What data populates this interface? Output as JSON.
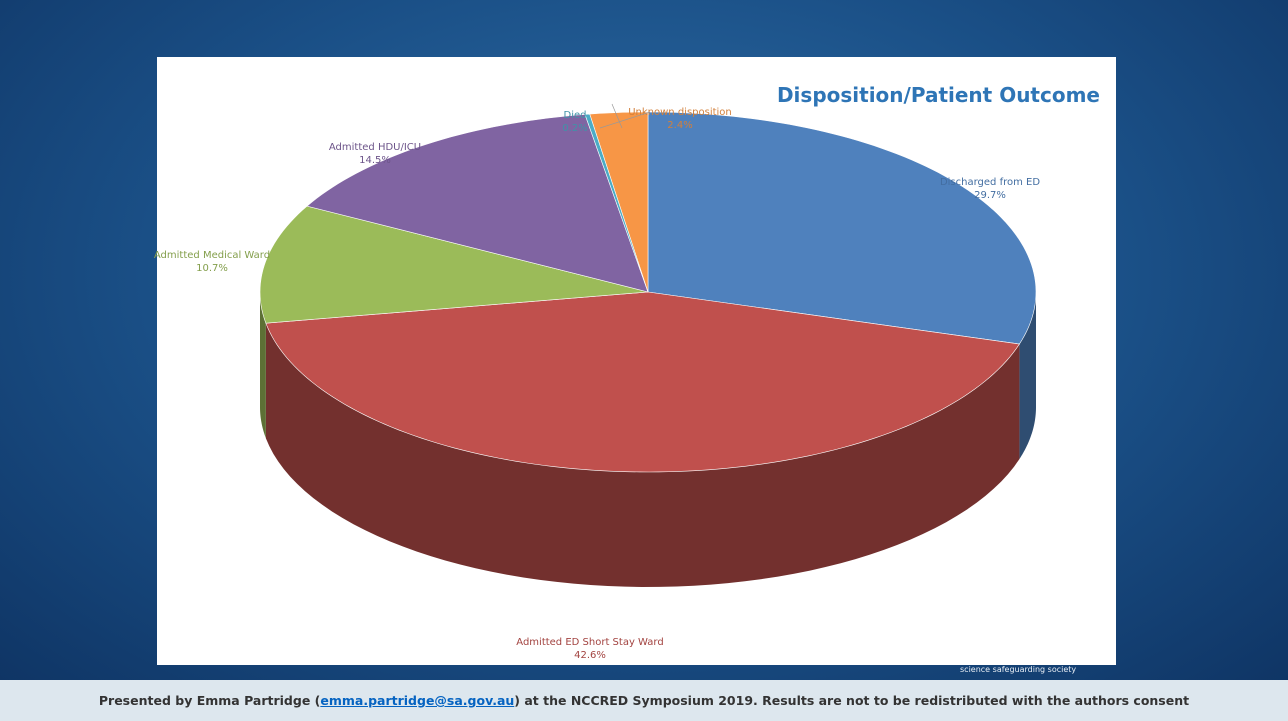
{
  "chart_data": {
    "type": "pie",
    "title": "Disposition/Patient Outcome",
    "categories": [
      "Discharged from ED",
      "Admitted ED Short Stay Ward",
      "Admitted Medical Ward",
      "Admitted HDU/ICU",
      "Died",
      "Unknown disposition"
    ],
    "values": [
      29.7,
      42.6,
      10.7,
      14.5,
      0.2,
      2.4
    ],
    "value_labels": [
      "29.7%",
      "42.6%",
      "10.7%",
      "14.5%",
      "0.2%",
      "2.4%"
    ],
    "colors": [
      "#4f81bd",
      "#c0504d",
      "#9bbb59",
      "#8064a2",
      "#4bacc6",
      "#f79646"
    ]
  },
  "logo_text": "science safeguarding society",
  "footer": {
    "before": "Presented by Emma Partridge (",
    "link": "emma.partridge@sa.gov.au",
    "after": ") at the NCCRED Symposium 2019. Results are not to be redistributed with the authors consent"
  }
}
